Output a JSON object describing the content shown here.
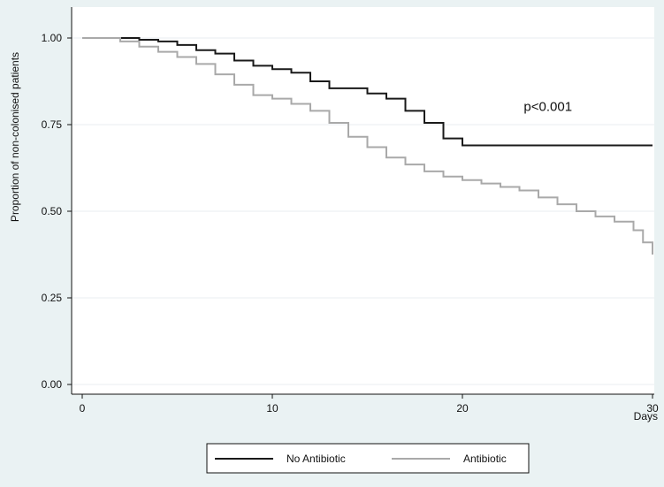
{
  "chart_data": {
    "type": "line",
    "step": true,
    "title": "",
    "xlabel": "Days",
    "ylabel": "Proportion of non-colonised patients",
    "xlim": [
      0,
      30
    ],
    "ylim": [
      0,
      1
    ],
    "x_ticks": [
      0,
      10,
      20,
      30
    ],
    "x_tick_labels": [
      "0",
      "10",
      "20",
      "30"
    ],
    "y_ticks": [
      0,
      0.25,
      0.5,
      0.75,
      1
    ],
    "y_tick_labels": [
      "0.00",
      "0.25",
      "0.50",
      "0.75",
      "1.00"
    ],
    "grid": "horizontal",
    "legend_position": "bottom",
    "annotation": {
      "text": "p<0.001",
      "x": 24.5,
      "y": 0.79
    },
    "series": [
      {
        "name": "No Antibiotic",
        "color": "#1a1a1a",
        "points": [
          [
            0,
            1.0
          ],
          [
            1,
            1.0
          ],
          [
            3,
            0.995
          ],
          [
            4,
            0.99
          ],
          [
            5,
            0.98
          ],
          [
            6,
            0.965
          ],
          [
            7,
            0.955
          ],
          [
            8,
            0.935
          ],
          [
            9,
            0.92
          ],
          [
            10,
            0.91
          ],
          [
            11,
            0.9
          ],
          [
            12,
            0.875
          ],
          [
            13,
            0.855
          ],
          [
            14,
            0.855
          ],
          [
            15,
            0.84
          ],
          [
            16,
            0.825
          ],
          [
            17,
            0.79
          ],
          [
            18,
            0.755
          ],
          [
            19,
            0.71
          ],
          [
            20,
            0.69
          ],
          [
            30,
            0.69
          ]
        ]
      },
      {
        "name": "Antibiotic",
        "color": "#a9a9a9",
        "points": [
          [
            0,
            1.0
          ],
          [
            1,
            1.0
          ],
          [
            2,
            0.99
          ],
          [
            3,
            0.975
          ],
          [
            4,
            0.96
          ],
          [
            5,
            0.945
          ],
          [
            6,
            0.925
          ],
          [
            7,
            0.895
          ],
          [
            8,
            0.865
          ],
          [
            9,
            0.835
          ],
          [
            10,
            0.825
          ],
          [
            11,
            0.81
          ],
          [
            12,
            0.79
          ],
          [
            13,
            0.755
          ],
          [
            14,
            0.715
          ],
          [
            15,
            0.685
          ],
          [
            16,
            0.655
          ],
          [
            17,
            0.635
          ],
          [
            18,
            0.615
          ],
          [
            19,
            0.6
          ],
          [
            20,
            0.59
          ],
          [
            21,
            0.58
          ],
          [
            22,
            0.57
          ],
          [
            23,
            0.56
          ],
          [
            24,
            0.54
          ],
          [
            25,
            0.52
          ],
          [
            26,
            0.5
          ],
          [
            27,
            0.485
          ],
          [
            28,
            0.47
          ],
          [
            29,
            0.445
          ],
          [
            29.5,
            0.41
          ],
          [
            30,
            0.41
          ],
          [
            30,
            0.375
          ]
        ]
      }
    ]
  }
}
